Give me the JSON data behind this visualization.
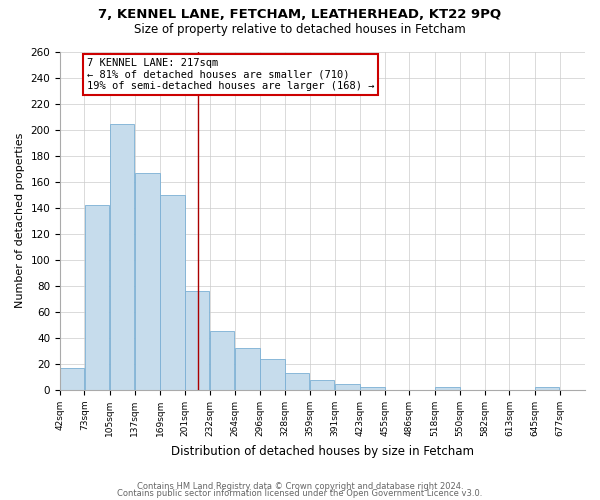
{
  "title1": "7, KENNEL LANE, FETCHAM, LEATHERHEAD, KT22 9PQ",
  "title2": "Size of property relative to detached houses in Fetcham",
  "xlabel": "Distribution of detached houses by size in Fetcham",
  "ylabel": "Number of detached properties",
  "bar_left_edges": [
    42,
    73,
    105,
    137,
    169,
    201,
    232,
    264,
    296,
    328,
    359,
    391,
    423,
    455,
    486,
    518,
    550,
    582,
    613,
    645
  ],
  "bar_widths": [
    31,
    32,
    32,
    32,
    32,
    31,
    32,
    32,
    32,
    31,
    32,
    32,
    32,
    31,
    32,
    32,
    32,
    31,
    32,
    32
  ],
  "bar_heights": [
    17,
    142,
    204,
    167,
    150,
    76,
    45,
    32,
    24,
    13,
    8,
    5,
    2,
    0,
    0,
    2,
    0,
    0,
    0,
    2
  ],
  "bar_color": "#c6dcec",
  "bar_edgecolor": "#7bafd4",
  "tick_labels": [
    "42sqm",
    "73sqm",
    "105sqm",
    "137sqm",
    "169sqm",
    "201sqm",
    "232sqm",
    "264sqm",
    "296sqm",
    "328sqm",
    "359sqm",
    "391sqm",
    "423sqm",
    "455sqm",
    "486sqm",
    "518sqm",
    "550sqm",
    "582sqm",
    "613sqm",
    "645sqm",
    "677sqm"
  ],
  "ylim": [
    0,
    260
  ],
  "yticks": [
    0,
    20,
    40,
    60,
    80,
    100,
    120,
    140,
    160,
    180,
    200,
    220,
    240,
    260
  ],
  "xlim_left": 42,
  "xlim_right": 709,
  "vline_x": 217,
  "vline_color": "#aa0000",
  "annotation_title": "7 KENNEL LANE: 217sqm",
  "annotation_line1": "← 81% of detached houses are smaller (710)",
  "annotation_line2": "19% of semi-detached houses are larger (168) →",
  "footer1": "Contains HM Land Registry data © Crown copyright and database right 2024.",
  "footer2": "Contains public sector information licensed under the Open Government Licence v3.0.",
  "background_color": "#ffffff",
  "grid_color": "#cccccc",
  "title1_fontsize": 9.5,
  "title2_fontsize": 8.5,
  "ylabel_fontsize": 8,
  "xlabel_fontsize": 8.5,
  "tick_fontsize": 6.5,
  "ytick_fontsize": 7.5,
  "footer_fontsize": 6,
  "footer_color": "#666666"
}
